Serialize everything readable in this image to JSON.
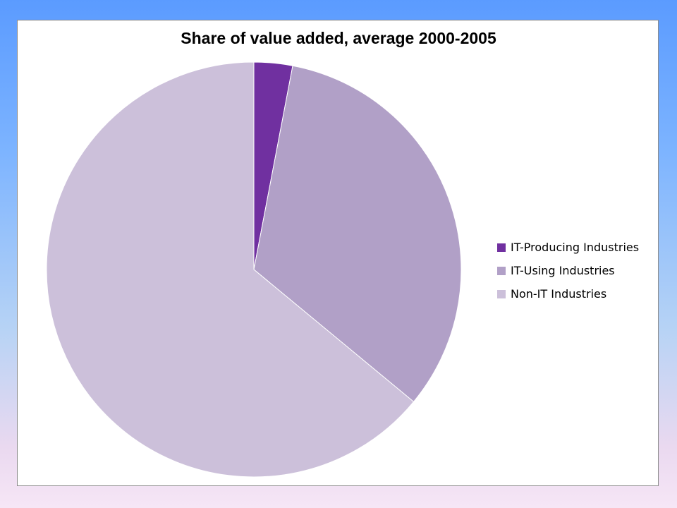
{
  "chart_data": {
    "type": "pie",
    "title": "Share of value added, average 2000-2005",
    "slices": [
      {
        "label": "IT-Producing Industries",
        "value": 3.0,
        "color": "#7030a0"
      },
      {
        "label": "IT-Using Industries",
        "value": 33.0,
        "color": "#b1a0c7"
      },
      {
        "label": "Non-IT Industries",
        "value": 64.0,
        "color": "#ccc0da"
      }
    ],
    "start_angle": "12 o'clock",
    "direction": "clockwise",
    "legend_position": "right"
  }
}
